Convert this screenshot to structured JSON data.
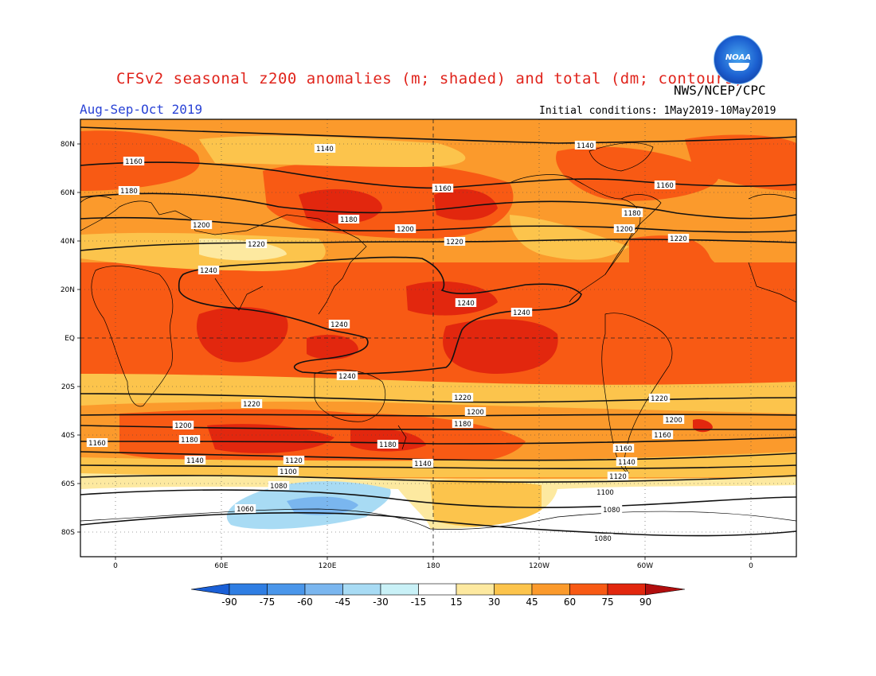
{
  "header": {
    "title": "CFSv2 seasonal z200 anomalies (m; shaded) and total (dm; contours)",
    "season": "Aug-Sep-Oct 2019",
    "org": "NWS/NCEP/CPC",
    "initial_conditions": "Initial conditions: 1May2019-10May2019",
    "logo_text": "NOAA"
  },
  "map": {
    "lat_labels": [
      "80N",
      "60N",
      "40N",
      "20N",
      "EQ",
      "20S",
      "40S",
      "60S",
      "80S"
    ],
    "lon_labels": [
      "0",
      "60E",
      "120E",
      "180",
      "120W",
      "60W",
      "0"
    ],
    "contour_labels": [
      {
        "text": "1140"
      },
      {
        "text": "1140"
      },
      {
        "text": "1160"
      },
      {
        "text": "1160"
      },
      {
        "text": "1160"
      },
      {
        "text": "1180"
      },
      {
        "text": "1180"
      },
      {
        "text": "1180"
      },
      {
        "text": "1200"
      },
      {
        "text": "1200"
      },
      {
        "text": "1200"
      },
      {
        "text": "1220"
      },
      {
        "text": "1220"
      },
      {
        "text": "1220"
      },
      {
        "text": "1240"
      },
      {
        "text": "1240"
      },
      {
        "text": "1240"
      },
      {
        "text": "1240"
      },
      {
        "text": "1240"
      },
      {
        "text": "1220"
      },
      {
        "text": "1220"
      },
      {
        "text": "1220"
      },
      {
        "text": "1200"
      },
      {
        "text": "1200"
      },
      {
        "text": "1200"
      },
      {
        "text": "1180"
      },
      {
        "text": "1180"
      },
      {
        "text": "1180"
      },
      {
        "text": "1160"
      },
      {
        "text": "1160"
      },
      {
        "text": "1160"
      },
      {
        "text": "1140"
      },
      {
        "text": "1140"
      },
      {
        "text": "1140"
      },
      {
        "text": "1120"
      },
      {
        "text": "1120"
      },
      {
        "text": "1100"
      },
      {
        "text": "1100"
      },
      {
        "text": "1080"
      },
      {
        "text": "1080"
      },
      {
        "text": "1080"
      },
      {
        "text": "1060"
      }
    ]
  },
  "colorbar": {
    "labels": [
      "-90",
      "-75",
      "-60",
      "-45",
      "-30",
      "-15",
      "15",
      "30",
      "45",
      "60",
      "75",
      "90"
    ],
    "colors": [
      "#1a5fd6",
      "#2f7ee3",
      "#4a96ea",
      "#7ab6ef",
      "#a8dbf4",
      "#c9f1f7",
      "#ffffff",
      "#fde9a0",
      "#fcc44c",
      "#fb9a2c",
      "#f85a14",
      "#e2270e",
      "#b10e0e"
    ]
  }
}
